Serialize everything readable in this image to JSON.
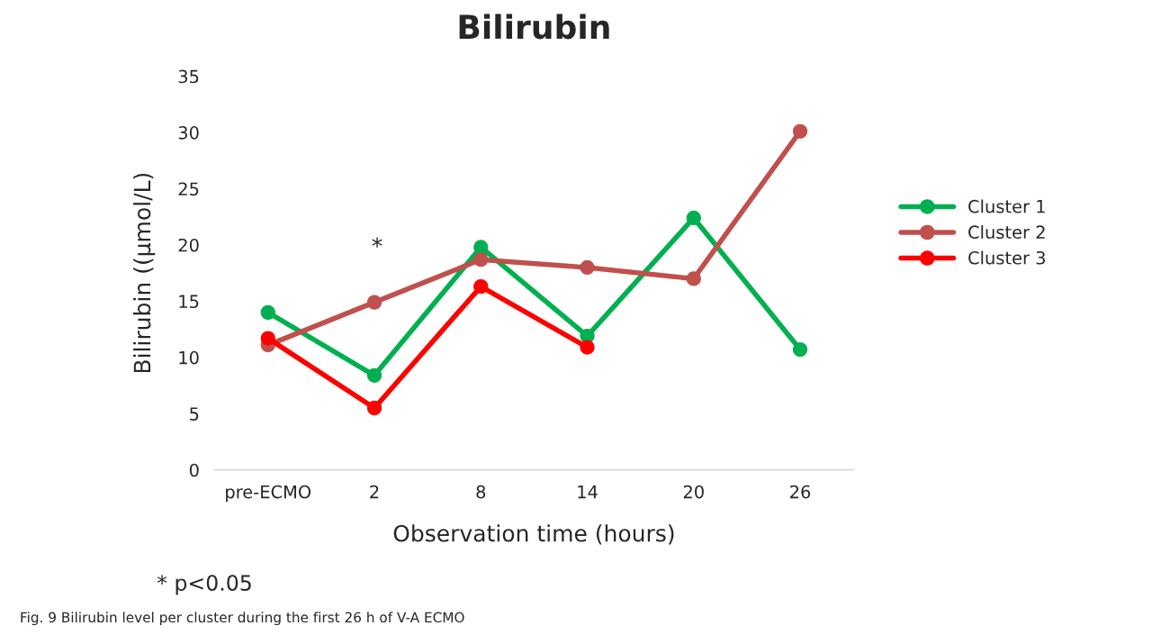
{
  "chart_data": {
    "type": "line",
    "title": "Bilirubin",
    "xlabel": "Observation time (hours)",
    "ylabel": "Bilirubin ((μmol/L)",
    "categories": [
      "pre-ECMO",
      "2",
      "8",
      "14",
      "20",
      "26"
    ],
    "series": [
      {
        "name": "Cluster 1",
        "color": "#00b050",
        "values": [
          14.0,
          8.4,
          19.8,
          11.9,
          22.4,
          10.7
        ]
      },
      {
        "name": "Cluster 2",
        "color": "#c0504d",
        "values": [
          11.1,
          14.9,
          18.7,
          18.0,
          17.0,
          30.1
        ]
      },
      {
        "name": "Cluster 3",
        "color": "#ff0000",
        "values": [
          11.7,
          5.5,
          16.3,
          10.9,
          null,
          null
        ]
      }
    ],
    "ylim": [
      0,
      35
    ],
    "yticks": [
      0,
      5,
      10,
      15,
      20,
      25,
      30,
      35
    ],
    "grid": false,
    "legend": "right",
    "marker": "circle",
    "line_style": "solid",
    "annotations": [
      "*",
      "* p<0.05",
      "Fig. 9 Bilirubin level per cluster during the first 26 h of V-A ECMO"
    ]
  }
}
